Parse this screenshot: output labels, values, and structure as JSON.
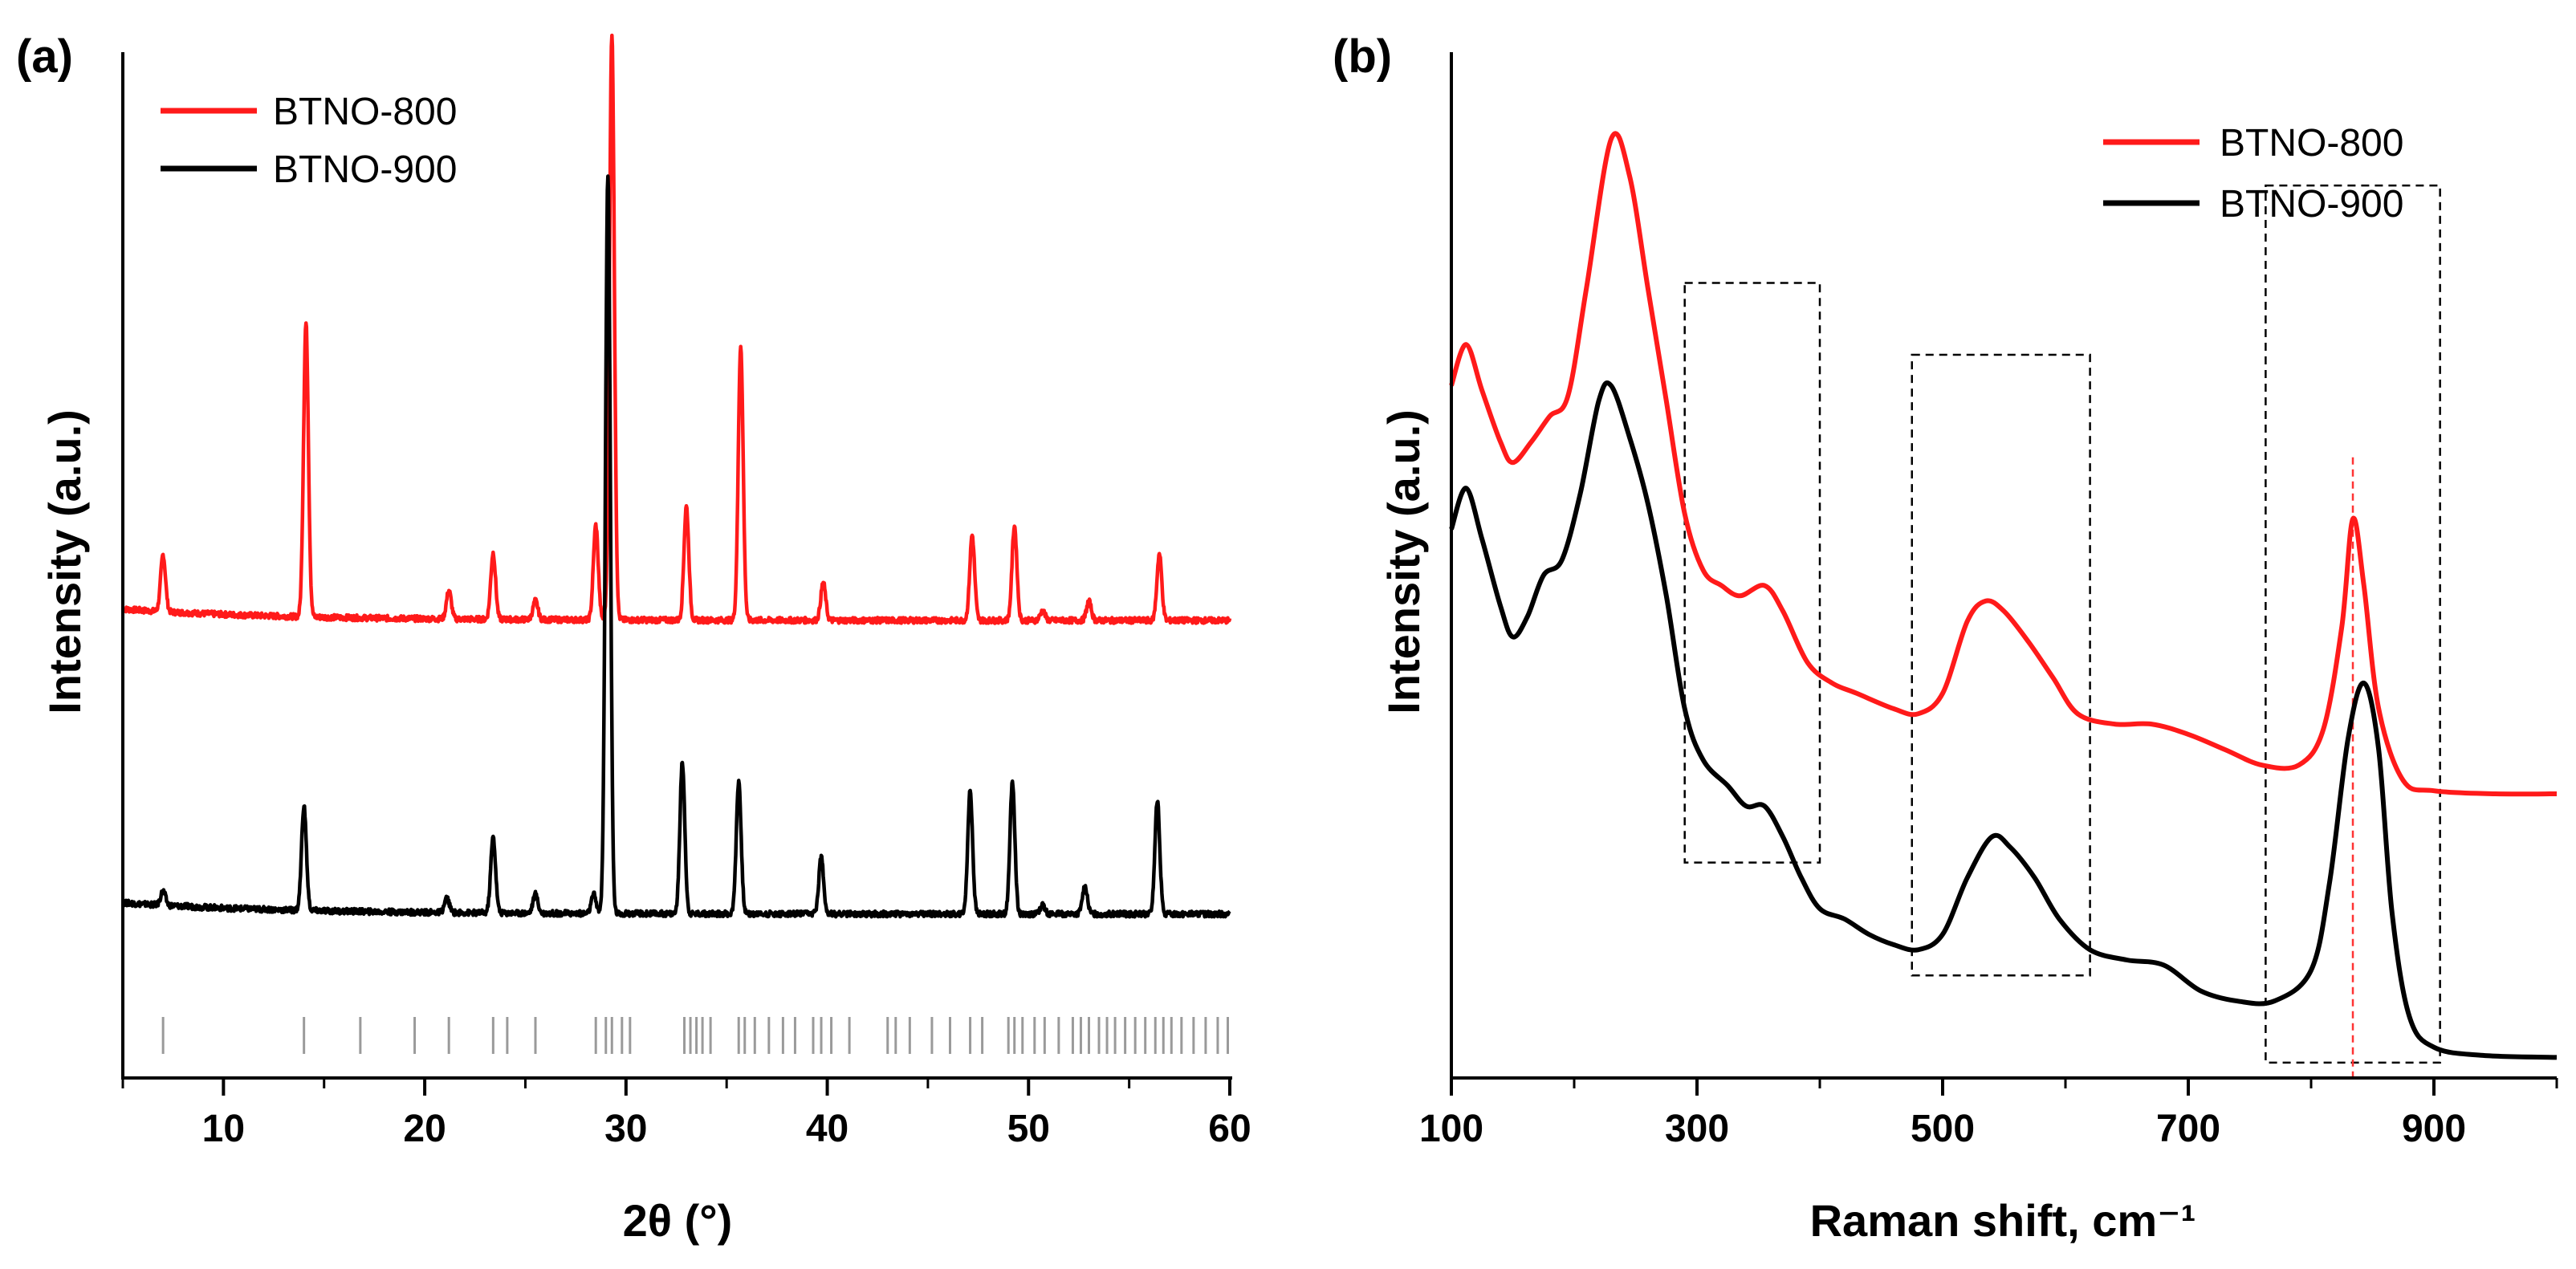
{
  "colors": {
    "red": "#ff1a1a",
    "black": "#000000",
    "gray": "#9a9a9a",
    "ref_line": "#ff3333"
  },
  "chart_data": [
    {
      "panel": "(a)",
      "type": "line",
      "xlabel": "2θ (°)",
      "ylabel": "Intensity (a.u.)",
      "xlim": [
        5,
        60
      ],
      "ylim": [
        0,
        1
      ],
      "xticks": [
        10,
        20,
        30,
        40,
        50,
        60
      ],
      "xtick_labels": [
        "10",
        "20",
        "30",
        "40",
        "50",
        "60"
      ],
      "legend": {
        "placement": "top-left",
        "entries": [
          "BTNO-800",
          "BTNO-900"
        ]
      },
      "series": [
        {
          "name": "BTNO-800",
          "color": "#ff1a1a",
          "baseline": 0.4,
          "peaks": [
            [
              7.0,
              0.06
            ],
            [
              14.1,
              0.31
            ],
            [
              21.2,
              0.03
            ],
            [
              23.4,
              0.07
            ],
            [
              25.5,
              0.02
            ],
            [
              28.5,
              0.1
            ],
            [
              29.3,
              0.62
            ],
            [
              33.0,
              0.12
            ],
            [
              35.7,
              0.29
            ],
            [
              39.8,
              0.04
            ],
            [
              47.2,
              0.09
            ],
            [
              49.3,
              0.1
            ],
            [
              50.7,
              0.01
            ],
            [
              53.0,
              0.02
            ],
            [
              56.5,
              0.07
            ]
          ]
        },
        {
          "name": "BTNO-900",
          "color": "#000000",
          "baseline": 0.09,
          "peaks": [
            [
              7.0,
              0.015
            ],
            [
              14.0,
              0.11
            ],
            [
              21.1,
              0.015
            ],
            [
              23.4,
              0.08
            ],
            [
              25.5,
              0.02
            ],
            [
              28.4,
              0.02
            ],
            [
              29.1,
              0.78
            ],
            [
              32.8,
              0.16
            ],
            [
              35.6,
              0.14
            ],
            [
              39.7,
              0.06
            ],
            [
              47.1,
              0.13
            ],
            [
              49.2,
              0.14
            ],
            [
              50.7,
              0.01
            ],
            [
              52.8,
              0.03
            ],
            [
              56.4,
              0.12
            ]
          ]
        }
      ],
      "reference_ticks": [
        7.0,
        14.0,
        16.8,
        19.5,
        21.2,
        23.4,
        24.1,
        25.5,
        28.5,
        29.0,
        29.3,
        29.8,
        30.2,
        32.9,
        33.2,
        33.5,
        33.8,
        34.2,
        35.6,
        35.9,
        36.4,
        37.1,
        37.8,
        38.4,
        39.3,
        39.7,
        40.2,
        41.1,
        43.0,
        43.4,
        44.1,
        45.2,
        46.1,
        47.1,
        47.7,
        49.0,
        49.3,
        49.7,
        50.3,
        50.8,
        51.5,
        52.2,
        52.6,
        53.0,
        53.5,
        53.9,
        54.3,
        54.8,
        55.3,
        55.8,
        56.3,
        56.7,
        57.1,
        57.6,
        58.2,
        58.8,
        59.4,
        59.9
      ]
    },
    {
      "panel": "(b)",
      "type": "line",
      "xlabel": "Raman shift, cm⁻¹",
      "ylabel": "Intensity (a.u.)",
      "xlim": [
        100,
        1000
      ],
      "ylim": [
        0,
        1
      ],
      "xticks": [
        100,
        300,
        500,
        700,
        900
      ],
      "xtick_labels": [
        "100",
        "300",
        "500",
        "700",
        "900"
      ],
      "legend": {
        "placement": "top-right",
        "entries": [
          "BTNO-800",
          "BTNO-900"
        ]
      },
      "reference_line_x": 834,
      "boxes": [
        [
          290,
          400
        ],
        [
          475,
          620
        ],
        [
          763,
          905
        ]
      ],
      "series": [
        {
          "name": "BTNO-800",
          "color": "#ff1a1a",
          "points": [
            [
              100,
              0.675
            ],
            [
              112,
              0.715
            ],
            [
              125,
              0.67
            ],
            [
              140,
              0.62
            ],
            [
              150,
              0.6
            ],
            [
              165,
              0.62
            ],
            [
              180,
              0.645
            ],
            [
              195,
              0.665
            ],
            [
              210,
              0.77
            ],
            [
              230,
              0.915
            ],
            [
              245,
              0.88
            ],
            [
              260,
              0.77
            ],
            [
              275,
              0.66
            ],
            [
              290,
              0.55
            ],
            [
              305,
              0.495
            ],
            [
              320,
              0.48
            ],
            [
              335,
              0.47
            ],
            [
              355,
              0.48
            ],
            [
              370,
              0.455
            ],
            [
              390,
              0.405
            ],
            [
              410,
              0.385
            ],
            [
              430,
              0.375
            ],
            [
              460,
              0.36
            ],
            [
              480,
              0.355
            ],
            [
              500,
              0.375
            ],
            [
              520,
              0.445
            ],
            [
              535,
              0.465
            ],
            [
              550,
              0.455
            ],
            [
              570,
              0.425
            ],
            [
              590,
              0.39
            ],
            [
              610,
              0.355
            ],
            [
              640,
              0.345
            ],
            [
              670,
              0.345
            ],
            [
              700,
              0.335
            ],
            [
              730,
              0.32
            ],
            [
              760,
              0.305
            ],
            [
              790,
              0.305
            ],
            [
              810,
              0.34
            ],
            [
              825,
              0.44
            ],
            [
              834,
              0.545
            ],
            [
              843,
              0.48
            ],
            [
              855,
              0.36
            ],
            [
              875,
              0.29
            ],
            [
              900,
              0.28
            ],
            [
              950,
              0.277
            ],
            [
              1000,
              0.277
            ]
          ]
        },
        {
          "name": "BTNO-900",
          "color": "#000000",
          "points": [
            [
              100,
              0.535
            ],
            [
              112,
              0.575
            ],
            [
              125,
              0.525
            ],
            [
              140,
              0.46
            ],
            [
              150,
              0.43
            ],
            [
              162,
              0.45
            ],
            [
              175,
              0.49
            ],
            [
              190,
              0.505
            ],
            [
              205,
              0.57
            ],
            [
              220,
              0.66
            ],
            [
              230,
              0.675
            ],
            [
              245,
              0.625
            ],
            [
              260,
              0.56
            ],
            [
              275,
              0.47
            ],
            [
              290,
              0.36
            ],
            [
              305,
              0.31
            ],
            [
              325,
              0.285
            ],
            [
              340,
              0.265
            ],
            [
              355,
              0.265
            ],
            [
              370,
              0.235
            ],
            [
              385,
              0.195
            ],
            [
              400,
              0.165
            ],
            [
              420,
              0.155
            ],
            [
              440,
              0.14
            ],
            [
              460,
              0.13
            ],
            [
              480,
              0.125
            ],
            [
              500,
              0.14
            ],
            [
              520,
              0.195
            ],
            [
              540,
              0.235
            ],
            [
              555,
              0.225
            ],
            [
              575,
              0.195
            ],
            [
              595,
              0.155
            ],
            [
              620,
              0.125
            ],
            [
              650,
              0.115
            ],
            [
              680,
              0.11
            ],
            [
              710,
              0.085
            ],
            [
              740,
              0.075
            ],
            [
              770,
              0.075
            ],
            [
              800,
              0.105
            ],
            [
              815,
              0.19
            ],
            [
              830,
              0.33
            ],
            [
              843,
              0.385
            ],
            [
              855,
              0.32
            ],
            [
              866,
              0.16
            ],
            [
              880,
              0.06
            ],
            [
              900,
              0.03
            ],
            [
              940,
              0.022
            ],
            [
              1000,
              0.02
            ]
          ]
        }
      ]
    }
  ]
}
